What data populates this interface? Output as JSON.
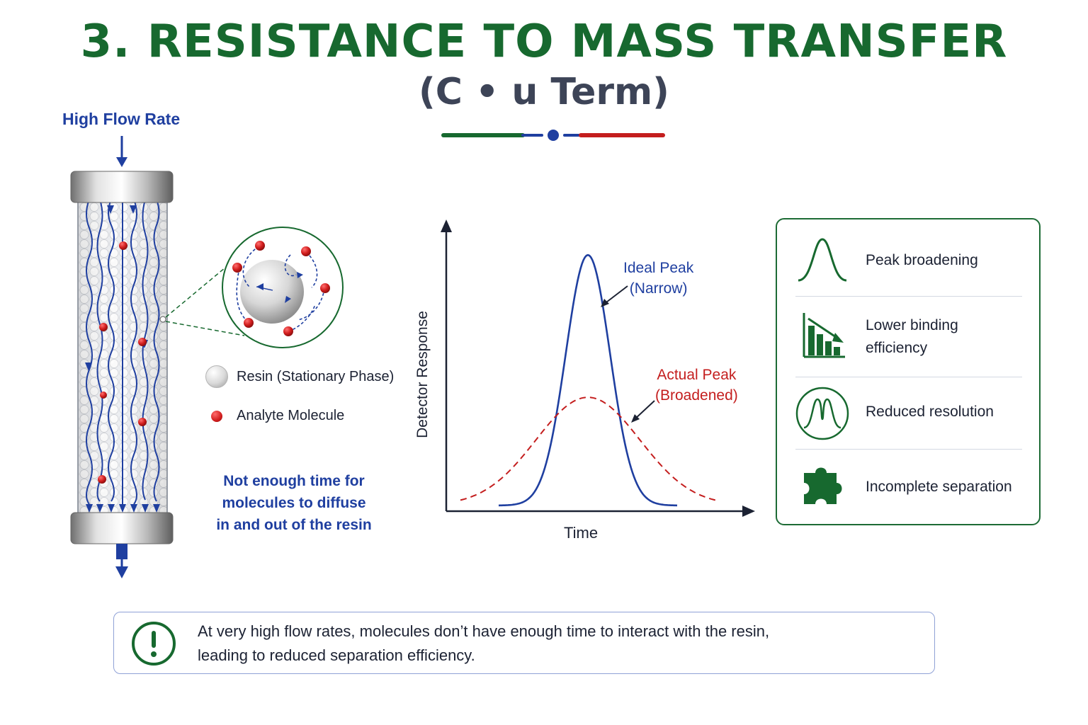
{
  "header": {
    "title": "3. RESISTANCE TO MASS TRANSFER",
    "subtitle": "(C • u Term)"
  },
  "column": {
    "flow_label": "High Flow Rate"
  },
  "legend": {
    "resin": "Resin (Stationary Phase)",
    "analyte": "Analyte Molecule"
  },
  "note": {
    "lines": [
      "Not enough time for",
      "molecules to diffuse",
      "in and out of the resin"
    ]
  },
  "chart_data": {
    "type": "line",
    "xlabel": "Time",
    "ylabel": "Detector Response",
    "series": [
      {
        "name": "Ideal Peak (Narrow)",
        "shape": "gaussian",
        "center": 0.5,
        "width": 0.115,
        "height": 0.88,
        "style": "solid",
        "color": "#1f3fa0"
      },
      {
        "name": "Actual Peak (Broadened)",
        "shape": "gaussian",
        "center": 0.5,
        "width": 0.27,
        "height": 0.38,
        "style": "dashed",
        "color": "#c41e1e"
      }
    ],
    "annotations": {
      "ideal": [
        "Ideal Peak",
        "(Narrow)"
      ],
      "actual": [
        "Actual Peak",
        "(Broadened)"
      ]
    }
  },
  "effects": [
    {
      "icon": "peak-broadening-icon",
      "lines": [
        "Peak broadening"
      ]
    },
    {
      "icon": "declining-bar-chart-icon",
      "lines": [
        "Lower binding",
        "efficiency"
      ]
    },
    {
      "icon": "overlapping-peaks-icon",
      "lines": [
        "Reduced resolution"
      ]
    },
    {
      "icon": "puzzle-piece-icon",
      "lines": [
        "Incomplete separation"
      ]
    }
  ],
  "callout": {
    "line1": "At very high flow rates, molecules don’t have enough time to interact with the resin,",
    "line2": "leading to reduced separation efficiency."
  },
  "colors": {
    "green": "#17692f",
    "blue": "#1f3fa0",
    "red": "#c41e1e"
  }
}
